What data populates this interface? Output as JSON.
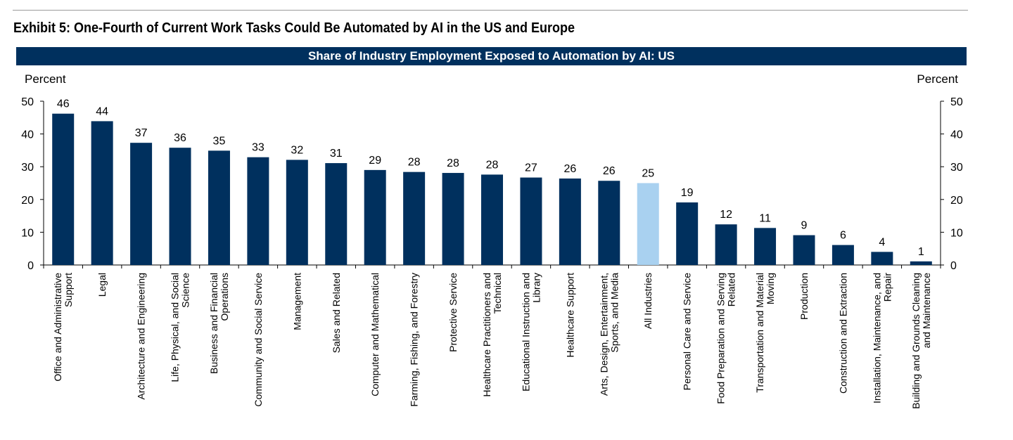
{
  "exhibit_title": "Exhibit 5: One-Fourth of Current Work Tasks Could Be Automated by AI in the US and Europe",
  "chart_data": {
    "type": "bar",
    "title": "Share of Industry Employment Exposed to Automation by AI: US",
    "ylabel_left": "Percent",
    "ylabel_right": "Percent",
    "ylim": [
      0,
      50
    ],
    "yticks": [
      0,
      10,
      20,
      30,
      40,
      50
    ],
    "grid": false,
    "colors": {
      "default": "#00305e",
      "highlight": "#a9d1f0"
    },
    "highlight_category": "All Industries",
    "categories": [
      [
        "Office and Administrative",
        "Support"
      ],
      [
        "Legal"
      ],
      [
        "Architecture and Engineering"
      ],
      [
        "Life, Physical, and Social",
        "Science"
      ],
      [
        "Business and Financial",
        "Operations"
      ],
      [
        "Community and Social Service"
      ],
      [
        "Management"
      ],
      [
        "Sales and Related"
      ],
      [
        "Computer and Mathematical"
      ],
      [
        "Farming, Fishing, and Forestry"
      ],
      [
        "Protective Service"
      ],
      [
        "Healthcare Practitioners and",
        "Technical"
      ],
      [
        "Educational Instruction and",
        "Library"
      ],
      [
        "Healthcare Support"
      ],
      [
        "Arts, Design, Entertainment,",
        "Sports, and Media"
      ],
      [
        "All Industries"
      ],
      [
        "Personal Care and Service"
      ],
      [
        "Food Preparation and Serving",
        "Related"
      ],
      [
        "Transportation and Material",
        "Moving"
      ],
      [
        "Production"
      ],
      [
        "Construction and Extraction"
      ],
      [
        "Installation, Maintenance, and",
        "Repair"
      ],
      [
        "Building and Grounds Cleaning",
        "and Maintenance"
      ]
    ],
    "values": [
      46.2,
      43.9,
      37.3,
      35.8,
      34.9,
      32.9,
      32.1,
      31.1,
      29.0,
      28.4,
      28.1,
      27.6,
      26.7,
      26.4,
      25.7,
      25.0,
      19.1,
      12.4,
      11.3,
      9.1,
      6.1,
      4.0,
      1.1
    ],
    "data_labels": [
      "46",
      "44",
      "37",
      "36",
      "35",
      "33",
      "32",
      "31",
      "29",
      "28",
      "28",
      "28",
      "27",
      "26",
      "26",
      "25",
      "19",
      "12",
      "11",
      "9",
      "6",
      "4",
      "1"
    ]
  }
}
